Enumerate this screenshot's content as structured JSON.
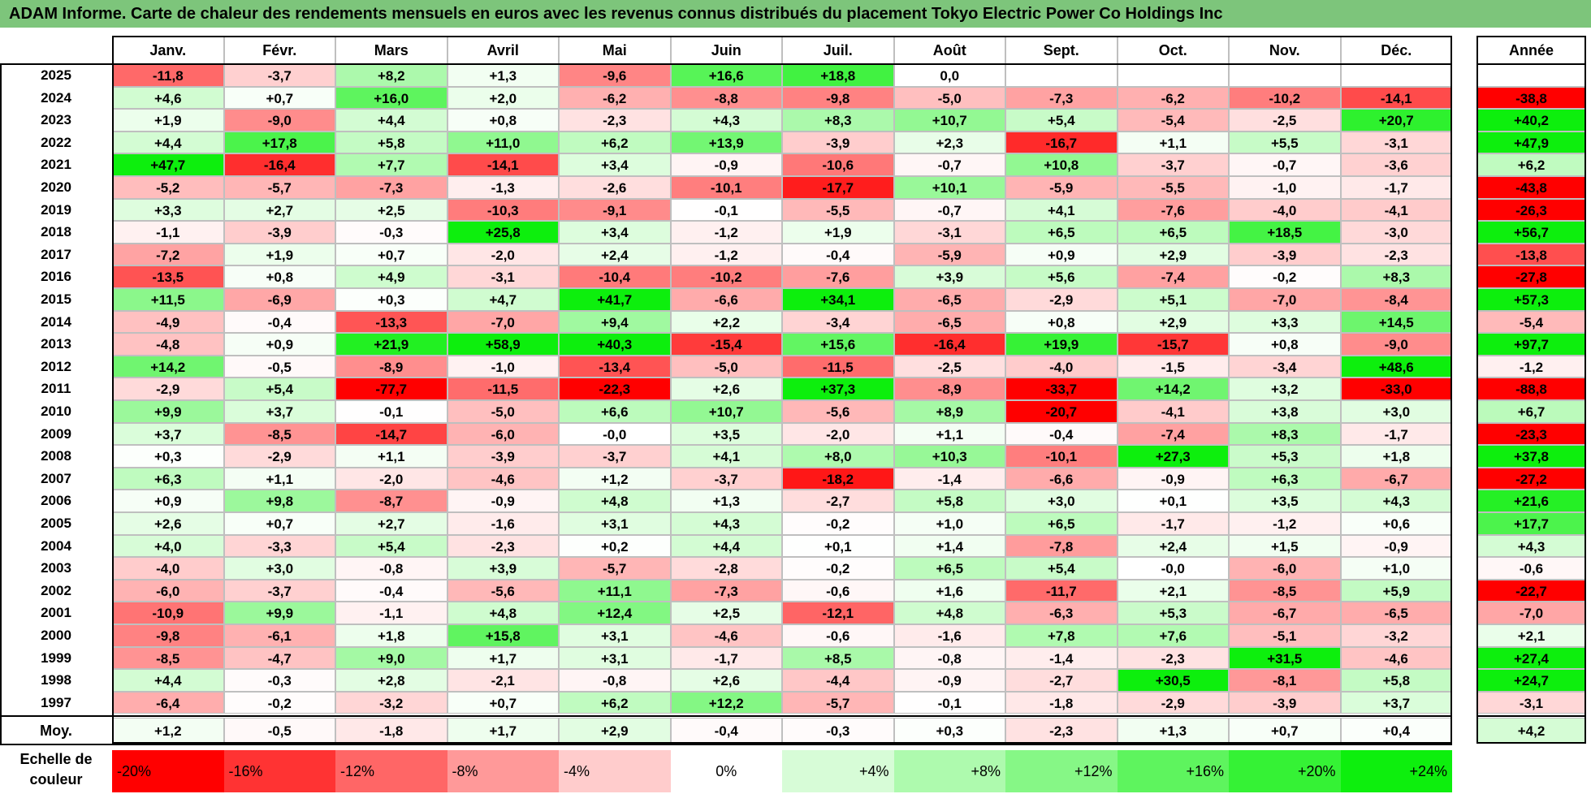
{
  "title": "ADAM Informe. Carte de chaleur des rendements mensuels en euros avec les revenus connus distribués du placement Tokyo Electric Power Co Holdings Inc",
  "chart_data": {
    "type": "heatmap",
    "columns": [
      "Janv.",
      "Févr.",
      "Mars",
      "Avril",
      "Mai",
      "Juin",
      "Juil.",
      "Août",
      "Sept.",
      "Oct.",
      "Nov.",
      "Déc."
    ],
    "year_column": "Année",
    "rows": [
      {
        "year": "2025",
        "values": [
          "-11,8",
          "-3,7",
          "+8,2",
          "+1,3",
          "-9,6",
          "+16,6",
          "+18,8",
          "0,0",
          "",
          "",
          "",
          ""
        ],
        "annual": ""
      },
      {
        "year": "2024",
        "values": [
          "+4,6",
          "+0,7",
          "+16,0",
          "+2,0",
          "-6,2",
          "-8,8",
          "-9,8",
          "-5,0",
          "-7,3",
          "-6,2",
          "-10,2",
          "-14,1"
        ],
        "annual": "-38,8"
      },
      {
        "year": "2023",
        "values": [
          "+1,9",
          "-9,0",
          "+4,4",
          "+0,8",
          "-2,3",
          "+4,3",
          "+8,3",
          "+10,7",
          "+5,4",
          "-5,4",
          "-2,5",
          "+20,7"
        ],
        "annual": "+40,2"
      },
      {
        "year": "2022",
        "values": [
          "+4,4",
          "+17,8",
          "+5,8",
          "+11,0",
          "+6,2",
          "+13,9",
          "-3,9",
          "+2,3",
          "-16,7",
          "+1,1",
          "+5,5",
          "-3,1"
        ],
        "annual": "+47,9"
      },
      {
        "year": "2021",
        "values": [
          "+47,7",
          "-16,4",
          "+7,7",
          "-14,1",
          "+3,4",
          "-0,9",
          "-10,6",
          "-0,7",
          "+10,8",
          "-3,7",
          "-0,7",
          "-3,6"
        ],
        "annual": "+6,2"
      },
      {
        "year": "2020",
        "values": [
          "-5,2",
          "-5,7",
          "-7,3",
          "-1,3",
          "-2,6",
          "-10,1",
          "-17,7",
          "+10,1",
          "-5,9",
          "-5,5",
          "-1,0",
          "-1,7"
        ],
        "annual": "-43,8"
      },
      {
        "year": "2019",
        "values": [
          "+3,3",
          "+2,7",
          "+2,5",
          "-10,3",
          "-9,1",
          "-0,1",
          "-5,5",
          "-0,7",
          "+4,1",
          "-7,6",
          "-4,0",
          "-4,1"
        ],
        "annual": "-26,3"
      },
      {
        "year": "2018",
        "values": [
          "-1,1",
          "-3,9",
          "-0,3",
          "+25,8",
          "+3,4",
          "-1,2",
          "+1,9",
          "-3,1",
          "+6,5",
          "+6,5",
          "+18,5",
          "-3,0"
        ],
        "annual": "+56,7"
      },
      {
        "year": "2017",
        "values": [
          "-7,2",
          "+1,9",
          "+0,7",
          "-2,0",
          "+2,4",
          "-1,2",
          "-0,4",
          "-5,9",
          "+0,9",
          "+2,9",
          "-3,9",
          "-2,3"
        ],
        "annual": "-13,8"
      },
      {
        "year": "2016",
        "values": [
          "-13,5",
          "+0,8",
          "+4,9",
          "-3,1",
          "-10,4",
          "-10,2",
          "-7,6",
          "+3,9",
          "+5,6",
          "-7,4",
          "-0,2",
          "+8,3"
        ],
        "annual": "-27,8"
      },
      {
        "year": "2015",
        "values": [
          "+11,5",
          "-6,9",
          "+0,3",
          "+4,7",
          "+41,7",
          "-6,6",
          "+34,1",
          "-6,5",
          "-2,9",
          "+5,1",
          "-7,0",
          "-8,4"
        ],
        "annual": "+57,3"
      },
      {
        "year": "2014",
        "values": [
          "-4,9",
          "-0,4",
          "-13,3",
          "-7,0",
          "+9,4",
          "+2,2",
          "-3,4",
          "-6,5",
          "+0,8",
          "+2,9",
          "+3,3",
          "+14,5"
        ],
        "annual": "-5,4"
      },
      {
        "year": "2013",
        "values": [
          "-4,8",
          "+0,9",
          "+21,9",
          "+58,9",
          "+40,3",
          "-15,4",
          "+15,6",
          "-16,4",
          "+19,9",
          "-15,7",
          "+0,8",
          "-9,0"
        ],
        "annual": "+97,7"
      },
      {
        "year": "2012",
        "values": [
          "+14,2",
          "-0,5",
          "-8,9",
          "-1,0",
          "-13,4",
          "-5,0",
          "-11,5",
          "-2,5",
          "-4,0",
          "-1,5",
          "-3,4",
          "+48,6"
        ],
        "annual": "-1,2"
      },
      {
        "year": "2011",
        "values": [
          "-2,9",
          "+5,4",
          "-77,7",
          "-11,5",
          "-22,3",
          "+2,6",
          "+37,3",
          "-8,9",
          "-33,7",
          "+14,2",
          "+3,2",
          "-33,0"
        ],
        "annual": "-88,8"
      },
      {
        "year": "2010",
        "values": [
          "+9,9",
          "+3,7",
          "-0,1",
          "-5,0",
          "+6,6",
          "+10,7",
          "-5,6",
          "+8,9",
          "-20,7",
          "-4,1",
          "+3,8",
          "+3,0"
        ],
        "annual": "+6,7"
      },
      {
        "year": "2009",
        "values": [
          "+3,7",
          "-8,5",
          "-14,7",
          "-6,0",
          "-0,0",
          "+3,5",
          "-2,0",
          "+1,1",
          "-0,4",
          "-7,4",
          "+8,3",
          "-1,7"
        ],
        "annual": "-23,3"
      },
      {
        "year": "2008",
        "values": [
          "+0,3",
          "-2,9",
          "+1,1",
          "-3,9",
          "-3,7",
          "+4,1",
          "+8,0",
          "+10,3",
          "-10,1",
          "+27,3",
          "+5,3",
          "+1,8"
        ],
        "annual": "+37,8"
      },
      {
        "year": "2007",
        "values": [
          "+6,3",
          "+1,1",
          "-2,0",
          "-4,6",
          "+1,2",
          "-3,7",
          "-18,2",
          "-1,4",
          "-6,6",
          "-0,9",
          "+6,3",
          "-6,7"
        ],
        "annual": "-27,2"
      },
      {
        "year": "2006",
        "values": [
          "+0,9",
          "+9,8",
          "-8,7",
          "-0,9",
          "+4,8",
          "+1,3",
          "-2,7",
          "+5,8",
          "+3,0",
          "+0,1",
          "+3,5",
          "+4,3"
        ],
        "annual": "+21,6"
      },
      {
        "year": "2005",
        "values": [
          "+2,6",
          "+0,7",
          "+2,7",
          "-1,6",
          "+3,1",
          "+4,3",
          "-0,2",
          "+1,0",
          "+6,5",
          "-1,7",
          "-1,2",
          "+0,6"
        ],
        "annual": "+17,7"
      },
      {
        "year": "2004",
        "values": [
          "+4,0",
          "-3,3",
          "+5,4",
          "-2,3",
          "+0,2",
          "+4,4",
          "+0,1",
          "+1,4",
          "-7,8",
          "+2,4",
          "+1,5",
          "-0,9"
        ],
        "annual": "+4,3"
      },
      {
        "year": "2003",
        "values": [
          "-4,0",
          "+3,0",
          "-0,8",
          "+3,9",
          "-5,7",
          "-2,8",
          "-0,2",
          "+6,5",
          "+5,4",
          "-0,0",
          "-6,0",
          "+1,0"
        ],
        "annual": "-0,6"
      },
      {
        "year": "2002",
        "values": [
          "-6,0",
          "-3,7",
          "-0,4",
          "-5,6",
          "+11,1",
          "-7,3",
          "-0,6",
          "+1,6",
          "-11,7",
          "+2,1",
          "-8,5",
          "+5,9"
        ],
        "annual": "-22,7"
      },
      {
        "year": "2001",
        "values": [
          "-10,9",
          "+9,9",
          "-1,1",
          "+4,8",
          "+12,4",
          "+2,5",
          "-12,1",
          "+4,8",
          "-6,3",
          "+5,3",
          "-6,7",
          "-6,5"
        ],
        "annual": "-7,0"
      },
      {
        "year": "2000",
        "values": [
          "-9,8",
          "-6,1",
          "+1,8",
          "+15,8",
          "+3,1",
          "-4,6",
          "-0,6",
          "-1,6",
          "+7,8",
          "+7,6",
          "-5,1",
          "-3,2"
        ],
        "annual": "+2,1"
      },
      {
        "year": "1999",
        "values": [
          "-8,5",
          "-4,7",
          "+9,0",
          "+1,7",
          "+3,1",
          "-1,7",
          "+8,5",
          "-0,8",
          "-1,4",
          "-2,3",
          "+31,5",
          "-4,6"
        ],
        "annual": "+27,4"
      },
      {
        "year": "1998",
        "values": [
          "+4,4",
          "-0,3",
          "+2,8",
          "-2,1",
          "-0,8",
          "+2,6",
          "-4,4",
          "-0,9",
          "-2,7",
          "+30,5",
          "-8,1",
          "+5,8"
        ],
        "annual": "+24,7"
      },
      {
        "year": "1997",
        "values": [
          "-6,4",
          "-0,2",
          "-3,2",
          "+0,7",
          "+6,2",
          "+12,2",
          "-5,7",
          "-0,1",
          "-1,8",
          "-2,9",
          "-3,9",
          "+3,7"
        ],
        "annual": "-3,1"
      }
    ],
    "average": {
      "label": "Moy.",
      "values": [
        "+1,2",
        "-0,5",
        "-1,8",
        "+1,7",
        "+2,9",
        "-0,4",
        "-0,3",
        "+0,3",
        "-2,3",
        "+1,3",
        "+0,7",
        "+0,4"
      ],
      "annual": "+4,2"
    },
    "color_scale": {
      "label": "Echelle de couleur",
      "stops": [
        "-20%",
        "-16%",
        "-12%",
        "-8%",
        "-4%",
        "0%",
        "+4%",
        "+8%",
        "+12%",
        "+16%",
        "+20%",
        "+24%"
      ],
      "stop_values": [
        -20,
        -16,
        -12,
        -8,
        -4,
        0,
        4,
        8,
        12,
        16,
        20,
        24
      ],
      "negative_color": "#ff0000",
      "positive_color": "#00ee00",
      "neutral_color": "#ffffff"
    }
  }
}
